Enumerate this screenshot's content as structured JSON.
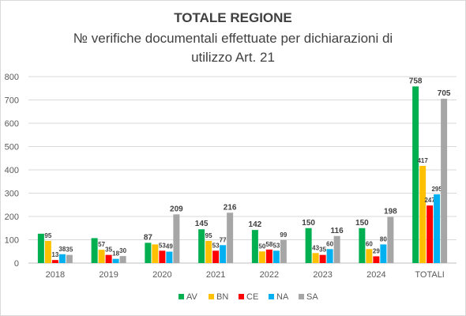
{
  "chart_data": {
    "type": "bar",
    "title": "TOTALE REGIONE",
    "subtitle_lines": [
      "№ verifiche documentali effettuate per dichiarazioni di",
      "utilizzo Art. 21"
    ],
    "xlabel": "",
    "ylabel": "",
    "ylim": [
      0,
      800
    ],
    "yticks": [
      "0",
      "100",
      "200",
      "300",
      "400",
      "500",
      "600",
      "700",
      "800"
    ],
    "grid": true,
    "legend_position": "bottom",
    "categories": [
      "2018",
      "2019",
      "2020",
      "2021",
      "2022",
      "2023",
      "2024",
      "TOTALI"
    ],
    "series": [
      {
        "name": "AV",
        "color": "#00b050",
        "values": [
          126,
          107,
          87,
          145,
          142,
          150,
          150,
          758
        ],
        "labels": [
          "",
          "",
          "87",
          "145",
          "142",
          "150",
          "150",
          "758"
        ]
      },
      {
        "name": "BN",
        "color": "#ffc000",
        "values": [
          95,
          57,
          80,
          95,
          50,
          43,
          60,
          417
        ],
        "labels": [
          "95",
          "57",
          "",
          "95",
          "50",
          "43",
          "60",
          "417"
        ]
      },
      {
        "name": "CE",
        "color": "#ff0000",
        "values": [
          13,
          35,
          53,
          53,
          58,
          35,
          29,
          247
        ],
        "labels": [
          "13",
          "35",
          "53",
          "53",
          "58",
          "35",
          "29",
          "247"
        ]
      },
      {
        "name": "NA",
        "color": "#00b0f0",
        "values": [
          38,
          18,
          49,
          77,
          53,
          60,
          80,
          295
        ],
        "labels": [
          "38",
          "18",
          "49",
          "77",
          "53",
          "60",
          "80",
          "295"
        ]
      },
      {
        "name": "SA",
        "color": "#a6a6a6",
        "values": [
          35,
          30,
          209,
          216,
          99,
          116,
          198,
          705
        ],
        "labels": [
          "35",
          "30",
          "209",
          "216",
          "99",
          "116",
          "198",
          "705"
        ]
      }
    ]
  }
}
